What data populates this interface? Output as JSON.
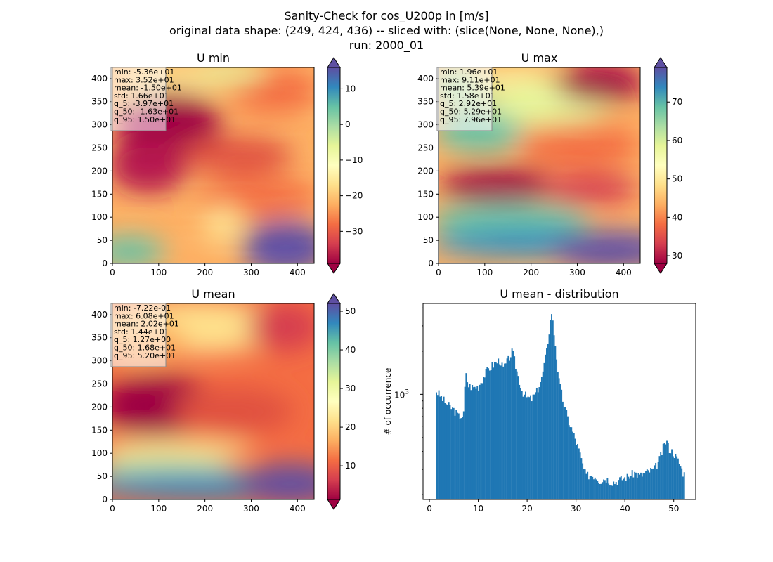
{
  "figure": {
    "title_lines": [
      "Sanity-Check for cos_U200p in [m/s]",
      "original data shape: (249, 424, 436) -- sliced with: (slice(None, None, None),)",
      "run: 2000_01"
    ]
  },
  "colormap": "Spectral",
  "chart_data": [
    {
      "type": "heatmap",
      "title": "U min",
      "xlim": [
        0,
        436
      ],
      "ylim": [
        0,
        424
      ],
      "xticks": [
        0,
        100,
        200,
        300,
        400
      ],
      "yticks": [
        0,
        50,
        100,
        150,
        200,
        250,
        300,
        350,
        400
      ],
      "colorbar": {
        "vmin": -39,
        "vmax": 16,
        "ticks": [
          -30,
          -20,
          -10,
          0,
          10
        ],
        "extend": "both"
      },
      "stats": [
        "min: -5.36e+01",
        "max: 3.52e+01",
        "mean: -1.50e+01",
        "std: 1.66e+01",
        "q_5: -3.97e+01",
        "q_50: -1.63e+01",
        "q_95: 1.50e+01"
      ]
    },
    {
      "type": "heatmap",
      "title": "U max",
      "xlim": [
        0,
        436
      ],
      "ylim": [
        0,
        424
      ],
      "xticks": [
        0,
        100,
        200,
        300,
        400
      ],
      "yticks": [
        0,
        50,
        100,
        150,
        200,
        250,
        300,
        350,
        400
      ],
      "colorbar": {
        "vmin": 28,
        "vmax": 79,
        "ticks": [
          30,
          40,
          50,
          60,
          70
        ],
        "extend": "both"
      },
      "stats": [
        "min: 1.96e+01",
        "max: 9.11e+01",
        "mean: 5.39e+01",
        "std: 1.58e+01",
        "q_5: 2.92e+01",
        "q_50: 5.29e+01",
        "q_95: 7.96e+01"
      ]
    },
    {
      "type": "heatmap",
      "title": "U mean",
      "xlim": [
        0,
        436
      ],
      "ylim": [
        0,
        424
      ],
      "xticks": [
        0,
        100,
        200,
        300,
        400
      ],
      "yticks": [
        0,
        50,
        100,
        150,
        200,
        250,
        300,
        350,
        400
      ],
      "colorbar": {
        "vmin": 1.3,
        "vmax": 52,
        "ticks": [
          10,
          20,
          30,
          40,
          50
        ],
        "extend": "both"
      },
      "stats": [
        "min: -7.22e-01",
        "max: 6.08e+01",
        "mean: 2.02e+01",
        "std: 1.44e+01",
        "q_5: 1.27e+00",
        "q_50: 1.68e+01",
        "q_95: 5.20e+01"
      ]
    },
    {
      "type": "bar",
      "title": "U mean - distribution",
      "xlabel": "",
      "ylabel": "# of occurrence",
      "xlim": [
        -1.3,
        54.5
      ],
      "ylim_log": [
        185,
        4300
      ],
      "xticks": [
        0,
        10,
        20,
        30,
        40,
        50
      ],
      "yticks_major": [
        1000
      ],
      "ytick_labels": [
        "10^3"
      ],
      "yticks_minor": [
        200,
        300,
        400,
        500,
        600,
        700,
        800,
        900,
        2000,
        3000,
        4000
      ],
      "color": "#1f77b4",
      "bin_start": 1.3,
      "bin_width": 0.2536,
      "anchors": [
        [
          1.3,
          1070
        ],
        [
          2,
          1000
        ],
        [
          3,
          900
        ],
        [
          4,
          830
        ],
        [
          5,
          780
        ],
        [
          6,
          700
        ],
        [
          7,
          720
        ],
        [
          7.4,
          1400
        ],
        [
          8,
          1150
        ],
        [
          9,
          1120
        ],
        [
          10,
          1130
        ],
        [
          11,
          1320
        ],
        [
          12,
          1500
        ],
        [
          13,
          1600
        ],
        [
          14,
          1700
        ],
        [
          14.5,
          1750
        ],
        [
          15,
          1500
        ],
        [
          16,
          1700
        ],
        [
          17,
          2000
        ],
        [
          18,
          1400
        ],
        [
          19,
          1050
        ],
        [
          20,
          950
        ],
        [
          21,
          930
        ],
        [
          22,
          1050
        ],
        [
          23,
          1300
        ],
        [
          24,
          2000
        ],
        [
          25,
          3800
        ],
        [
          25.8,
          2200
        ],
        [
          26.5,
          1250
        ],
        [
          27.5,
          850
        ],
        [
          28.5,
          650
        ],
        [
          29.5,
          530
        ],
        [
          30.5,
          420
        ],
        [
          31.3,
          330
        ],
        [
          32,
          270
        ],
        [
          33,
          275
        ],
        [
          34,
          270
        ],
        [
          35,
          250
        ],
        [
          36,
          262
        ],
        [
          37,
          248
        ],
        [
          38,
          245
        ],
        [
          39,
          255
        ],
        [
          40,
          262
        ],
        [
          41,
          270
        ],
        [
          42,
          285
        ],
        [
          43,
          270
        ],
        [
          44,
          280
        ],
        [
          45,
          292
        ],
        [
          46,
          300
        ],
        [
          47,
          345
        ],
        [
          48,
          440
        ],
        [
          48.5,
          480
        ],
        [
          49,
          420
        ],
        [
          50,
          390
        ],
        [
          51,
          340
        ],
        [
          52,
          280
        ]
      ],
      "jitter": 0.07
    }
  ]
}
